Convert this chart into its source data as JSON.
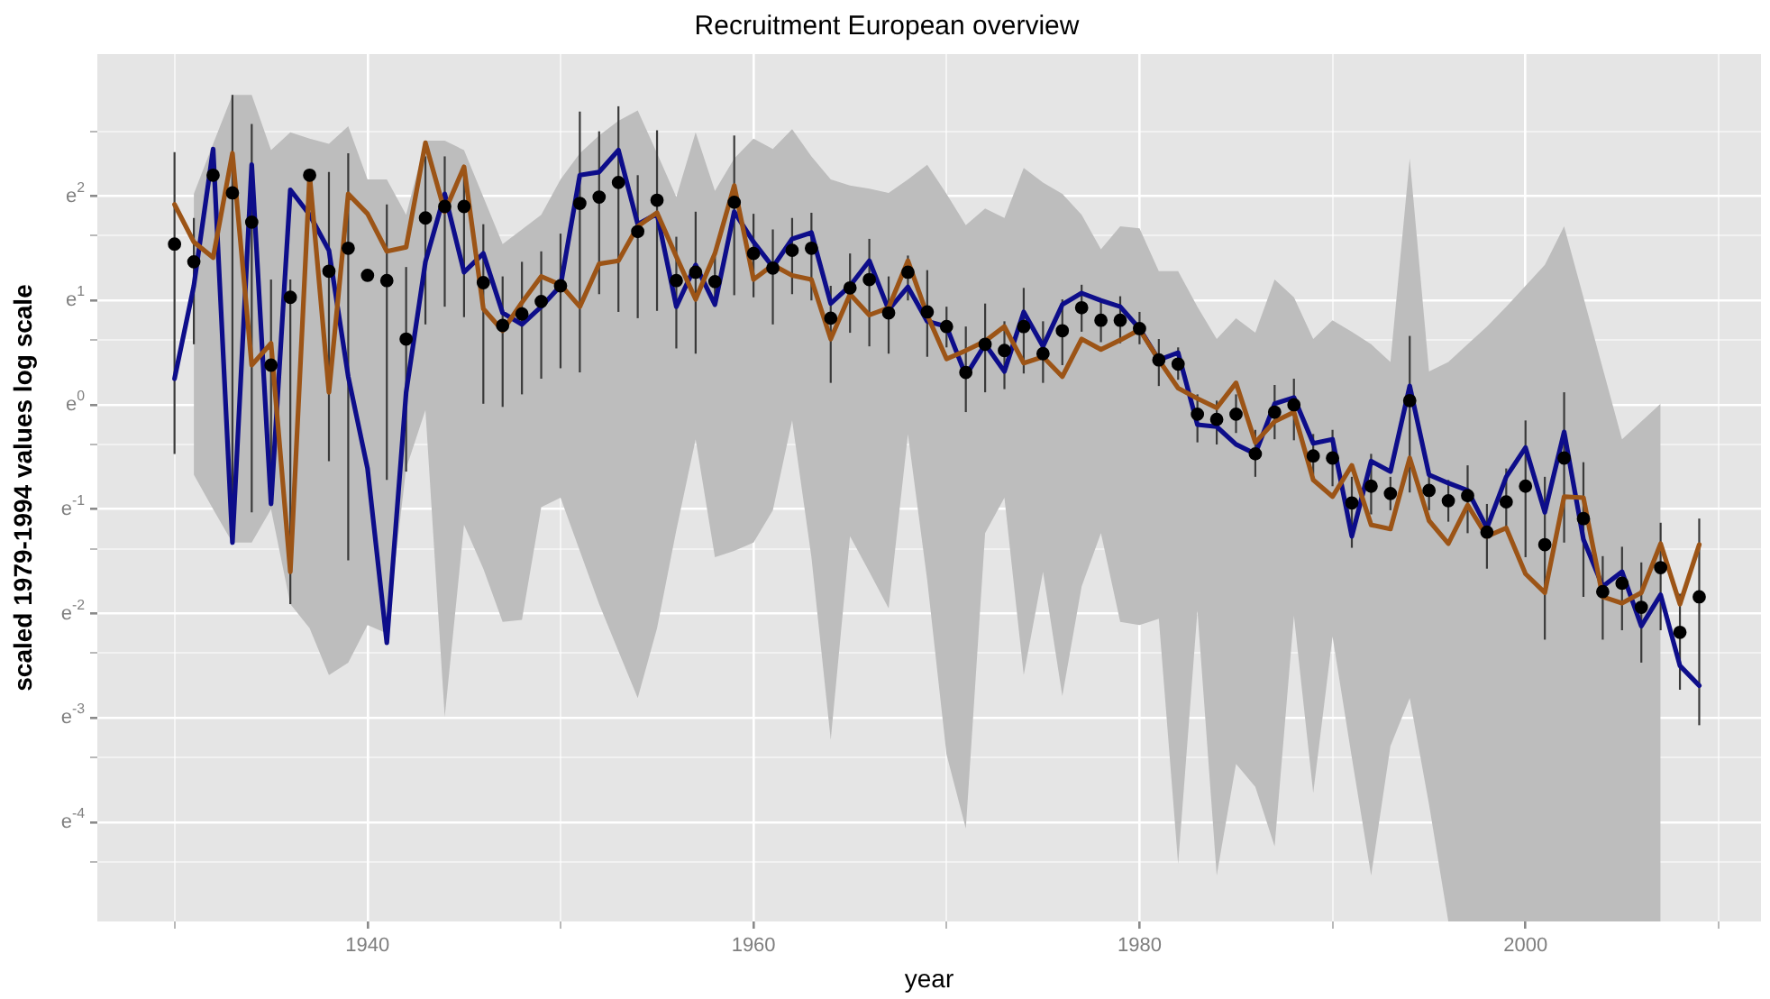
{
  "chart_data": {
    "type": "line",
    "title": "Recruitment European overview",
    "xlabel": "year",
    "ylabel": "scaled 1979-1994 values log scale",
    "x": [
      1930,
      1931,
      1932,
      1933,
      1934,
      1935,
      1936,
      1937,
      1938,
      1939,
      1940,
      1941,
      1942,
      1943,
      1944,
      1945,
      1946,
      1947,
      1948,
      1949,
      1950,
      1951,
      1952,
      1953,
      1954,
      1955,
      1956,
      1957,
      1958,
      1959,
      1960,
      1961,
      1962,
      1963,
      1964,
      1965,
      1966,
      1967,
      1968,
      1969,
      1970,
      1971,
      1972,
      1973,
      1974,
      1975,
      1976,
      1977,
      1978,
      1979,
      1980,
      1981,
      1982,
      1983,
      1984,
      1985,
      1986,
      1987,
      1988,
      1989,
      1990,
      1991,
      1992,
      1993,
      1994,
      1995,
      1996,
      1997,
      1998,
      1999,
      2000,
      2001,
      2002,
      2003,
      2004,
      2005,
      2006,
      2007,
      2008,
      2009
    ],
    "xlim": [
      1926,
      2012.2
    ],
    "xticks": [
      {
        "value": 1930,
        "label": null
      },
      1940,
      {
        "value": 1950,
        "label": null
      },
      1960,
      {
        "value": 1970,
        "label": null
      },
      1980,
      {
        "value": 1990,
        "label": null
      },
      2000,
      {
        "value": 2010,
        "label": null
      }
    ],
    "ylim": [
      -4.95,
      3.36
    ],
    "yticks": [
      {
        "value": -4.38,
        "label": null
      },
      {
        "value": -4,
        "label": "e$^{-4}$"
      },
      {
        "value": -3.38,
        "label": null
      },
      {
        "value": -3,
        "label": "e$^{-3}$"
      },
      {
        "value": -2.38,
        "label": null
      },
      {
        "value": -2,
        "label": "e$^{-2}$"
      },
      {
        "value": -1.38,
        "label": null
      },
      {
        "value": -1,
        "label": "e$^{-1}$"
      },
      {
        "value": -0.38,
        "label": null
      },
      {
        "value": 0,
        "label": "e$^{0}$"
      },
      {
        "value": 0.62,
        "label": null
      },
      {
        "value": 1,
        "label": "e$^{1}$"
      },
      {
        "value": 1.62,
        "label": null
      },
      {
        "value": 2,
        "label": "e$^{2}$"
      },
      {
        "value": 2.62,
        "label": null
      }
    ],
    "grid": true,
    "legend": false,
    "marker": "none",
    "series": [
      {
        "type": "line",
        "color": "#0d0d8a",
        "values": [
          0.25,
          1.14,
          2.45,
          -1.32,
          2.3,
          -0.95,
          2.06,
          1.82,
          1.48,
          0.27,
          -0.61,
          -2.28,
          0.12,
          1.37,
          2.02,
          1.27,
          1.45,
          0.88,
          0.77,
          0.94,
          1.14,
          2.2,
          2.23,
          2.44,
          1.73,
          1.83,
          0.94,
          1.34,
          0.96,
          1.85,
          1.56,
          1.32,
          1.59,
          1.65,
          0.97,
          1.14,
          1.38,
          0.91,
          1.13,
          0.8,
          0.75,
          0.28,
          0.58,
          0.32,
          0.89,
          0.56,
          0.96,
          1.07,
          1.0,
          0.94,
          0.73,
          0.43,
          0.5,
          -0.19,
          -0.21,
          -0.38,
          -0.47,
          0.01,
          0.07,
          -0.37,
          -0.33,
          -1.26,
          -0.54,
          -0.64,
          0.18,
          -0.67,
          -0.75,
          -0.82,
          -1.18,
          -0.69,
          -0.41,
          -1.03,
          -0.26,
          -1.29,
          -1.74,
          -1.6,
          -2.12,
          -1.82,
          -2.5,
          -2.69
        ],
        "upper": [
          null,
          2.02,
          2.5,
          2.97,
          2.97,
          2.44,
          2.61,
          2.55,
          2.5,
          2.67,
          2.16,
          2.16,
          1.82,
          2.53,
          2.53,
          2.44,
          1.99,
          1.54,
          1.68,
          1.82,
          2.16,
          2.41,
          2.58,
          2.72,
          2.82,
          2.41,
          1.99,
          2.61,
          2.05,
          2.36,
          2.55,
          2.45,
          2.64,
          2.38,
          2.16,
          2.1,
          2.07,
          2.03,
          2.16,
          2.3,
          2.02,
          1.72,
          1.88,
          1.79,
          2.27,
          2.13,
          2.02,
          1.82,
          1.49,
          1.71,
          1.69,
          1.28,
          1.28,
          0.94,
          0.63,
          0.83,
          0.69,
          1.2,
          1.03,
          0.63,
          0.81,
          0.7,
          0.58,
          0.41,
          2.36,
          0.32,
          0.41,
          0.58,
          0.75,
          0.94,
          1.14,
          1.34,
          1.71,
          1.03,
          0.35,
          -0.33,
          -0.16,
          0.01,
          null,
          null
        ],
        "lower": [
          null,
          -0.67,
          -1.0,
          -1.32,
          -1.32,
          -1.0,
          -1.91,
          -2.14,
          -2.59,
          -2.47,
          -2.11,
          -2.19,
          -0.61,
          -0.05,
          -2.99,
          -1.15,
          -1.57,
          -2.08,
          -2.06,
          -0.98,
          -0.89,
          -1.4,
          -1.91,
          -2.36,
          -2.81,
          -2.14,
          -1.2,
          -0.33,
          -1.46,
          -1.4,
          -1.32,
          -1.01,
          -0.15,
          -1.46,
          -3.21,
          -1.26,
          -1.6,
          -1.95,
          -0.28,
          -1.68,
          -3.35,
          -4.06,
          -1.23,
          -0.89,
          -2.59,
          -1.6,
          -2.79,
          -1.74,
          -1.23,
          -2.08,
          -2.11,
          -2.05,
          -4.4,
          -1.97,
          -4.51,
          -3.44,
          -3.66,
          -4.23,
          -2.02,
          -3.72,
          -2.22,
          -3.38,
          -4.51,
          -3.27,
          -2.81,
          -3.83,
          -4.95,
          -4.95,
          -4.95,
          -4.95,
          -4.95,
          -4.95,
          -4.95,
          -4.95,
          -4.95,
          -4.95,
          -4.95,
          -4.95,
          null,
          null
        ]
      },
      {
        "type": "line",
        "color": "#9c5416",
        "values": [
          1.92,
          1.56,
          1.41,
          2.41,
          0.38,
          0.59,
          -1.6,
          2.2,
          0.12,
          2.02,
          1.83,
          1.47,
          1.51,
          2.51,
          1.85,
          2.28,
          0.92,
          0.71,
          0.98,
          1.23,
          1.15,
          0.94,
          1.35,
          1.38,
          1.71,
          1.84,
          1.42,
          1.01,
          1.45,
          2.1,
          1.2,
          1.34,
          1.24,
          1.2,
          0.63,
          1.06,
          0.86,
          0.93,
          1.38,
          0.86,
          0.44,
          0.52,
          0.61,
          0.75,
          0.4,
          0.46,
          0.27,
          0.63,
          0.53,
          0.62,
          0.72,
          0.43,
          0.16,
          0.06,
          -0.03,
          0.21,
          -0.36,
          -0.16,
          -0.07,
          -0.72,
          -0.88,
          -0.58,
          -1.15,
          -1.19,
          -0.51,
          -1.11,
          -1.33,
          -0.96,
          -1.26,
          -1.18,
          -1.62,
          -1.8,
          -0.88,
          -0.89,
          -1.84,
          -1.9,
          -1.8,
          -1.33,
          -1.91,
          -1.34
        ]
      },
      {
        "type": "scatter",
        "color": "#000000",
        "marker": "circle",
        "values": [
          1.54,
          1.37,
          2.2,
          2.03,
          1.75,
          0.38,
          1.03,
          2.2,
          1.28,
          1.5,
          1.24,
          1.19,
          0.63,
          1.79,
          1.9,
          1.9,
          1.17,
          0.76,
          0.87,
          0.99,
          1.14,
          1.93,
          1.99,
          2.13,
          1.66,
          1.96,
          1.19,
          1.27,
          1.18,
          1.94,
          1.45,
          1.31,
          1.48,
          1.5,
          0.83,
          1.12,
          1.2,
          0.88,
          1.27,
          0.89,
          0.75,
          0.31,
          0.58,
          0.52,
          0.75,
          0.49,
          0.71,
          0.93,
          0.81,
          0.81,
          0.73,
          0.43,
          0.39,
          -0.09,
          -0.14,
          -0.09,
          -0.47,
          -0.07,
          0.0,
          -0.49,
          -0.51,
          -0.94,
          -0.78,
          -0.85,
          0.04,
          -0.82,
          -0.92,
          -0.87,
          -1.22,
          -0.93,
          -0.78,
          -1.34,
          -0.51,
          -1.09,
          -1.79,
          -1.71,
          -1.94,
          -1.56,
          -2.18,
          -1.84
        ],
        "errors": [
          [
            -0.47,
            2.42
          ],
          [
            0.58,
            1.79
          ],
          null,
          [
            -1.34,
            2.97
          ],
          [
            -1.03,
            2.69
          ],
          [
            -0.95,
            1.2
          ],
          [
            -1.91,
            1.2
          ],
          null,
          [
            -0.54,
            2.23
          ],
          [
            -1.49,
            2.41
          ],
          null,
          [
            -0.72,
            1.92
          ],
          [
            -0.64,
            1.32
          ],
          [
            0.77,
            2.38
          ],
          [
            0.94,
            2.38
          ],
          [
            0.84,
            2.28
          ],
          [
            0.01,
            1.73
          ],
          [
            -0.02,
            1.23
          ],
          [
            0.1,
            1.37
          ],
          [
            0.25,
            1.47
          ],
          [
            0.35,
            1.64
          ],
          [
            0.31,
            2.81
          ],
          [
            1.06,
            2.62
          ],
          [
            0.89,
            2.86
          ],
          [
            0.83,
            2.2
          ],
          [
            0.9,
            2.63
          ],
          [
            0.54,
            1.61
          ],
          [
            0.49,
            1.85
          ],
          [
            0.94,
            1.42
          ],
          [
            1.05,
            2.58
          ],
          [
            1.03,
            1.83
          ],
          [
            0.77,
            1.68
          ],
          [
            1.06,
            1.79
          ],
          [
            1.0,
            1.84
          ],
          [
            0.21,
            1.14
          ],
          [
            0.69,
            1.45
          ],
          [
            0.56,
            1.59
          ],
          [
            0.49,
            1.23
          ],
          [
            1.0,
            1.43
          ],
          [
            0.46,
            1.29
          ],
          [
            0.55,
            0.94
          ],
          [
            -0.07,
            0.75
          ],
          [
            0.12,
            0.97
          ],
          [
            0.15,
            0.8
          ],
          [
            0.3,
            1.12
          ],
          [
            0.21,
            0.8
          ],
          [
            0.38,
            1.01
          ],
          [
            0.7,
            1.15
          ],
          [
            0.6,
            1.0
          ],
          [
            0.59,
            1.04
          ],
          [
            0.58,
            0.89
          ],
          [
            0.18,
            0.63
          ],
          [
            0.24,
            0.55
          ],
          [
            -0.36,
            0.1
          ],
          [
            -0.38,
            0.04
          ],
          [
            -0.27,
            0.1
          ],
          [
            -0.69,
            -0.24
          ],
          [
            -0.33,
            0.19
          ],
          [
            -0.34,
            0.25
          ],
          [
            -0.67,
            -0.28
          ],
          [
            -0.78,
            -0.24
          ],
          [
            -1.37,
            -0.69
          ],
          [
            -1.05,
            -0.47
          ],
          [
            -1.01,
            -0.69
          ],
          [
            -0.84,
            0.66
          ],
          [
            -1.01,
            -0.64
          ],
          [
            -1.12,
            -0.72
          ],
          [
            -1.23,
            -0.58
          ],
          [
            -1.57,
            -0.95
          ],
          [
            -1.2,
            -0.61
          ],
          [
            -1.46,
            -0.15
          ],
          [
            -2.25,
            -0.69
          ],
          [
            -1.32,
            0.12
          ],
          [
            -1.84,
            -0.55
          ],
          [
            -2.25,
            -1.45
          ],
          [
            -2.16,
            -1.36
          ],
          [
            -2.47,
            -1.51
          ],
          [
            -2.16,
            -1.13
          ],
          [
            -2.73,
            -1.81
          ],
          [
            -3.07,
            -1.09
          ]
        ]
      }
    ]
  }
}
